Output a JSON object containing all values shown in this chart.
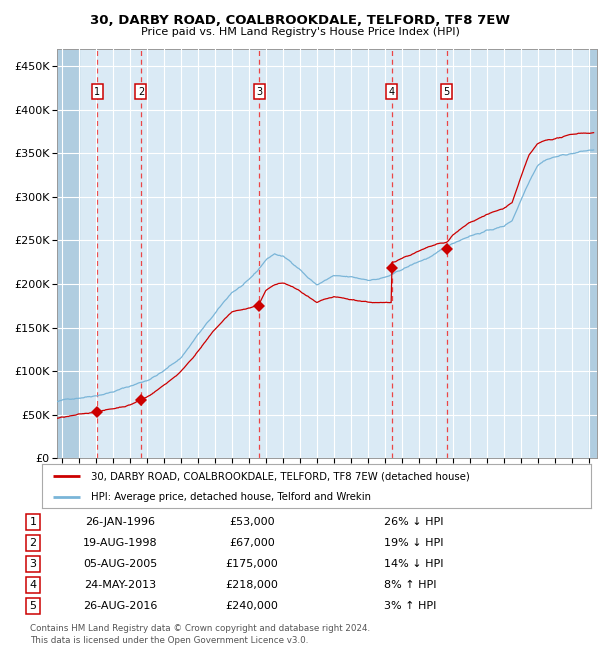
{
  "title": "30, DARBY ROAD, COALBROOKDALE, TELFORD, TF8 7EW",
  "subtitle": "Price paid vs. HM Land Registry's House Price Index (HPI)",
  "sales": [
    {
      "label": "1",
      "date_str": "26-JAN-1996",
      "year": 1996.07,
      "price": 53000,
      "pct": "26% ↓ HPI"
    },
    {
      "label": "2",
      "date_str": "19-AUG-1998",
      "year": 1998.64,
      "price": 67000,
      "pct": "19% ↓ HPI"
    },
    {
      "label": "3",
      "date_str": "05-AUG-2005",
      "year": 2005.6,
      "price": 175000,
      "pct": "14% ↓ HPI"
    },
    {
      "label": "4",
      "date_str": "24-MAY-2013",
      "year": 2013.4,
      "price": 218000,
      "pct": "8% ↑ HPI"
    },
    {
      "label": "5",
      "date_str": "26-AUG-2016",
      "year": 2016.65,
      "price": 240000,
      "pct": "3% ↑ HPI"
    }
  ],
  "hpi_color": "#7ab5d8",
  "price_color": "#cc0000",
  "marker_color": "#cc0000",
  "vline_color": "#ee3333",
  "plot_bg_color": "#daeaf5",
  "ylim": [
    0,
    470000
  ],
  "xlim_start": 1993.7,
  "xlim_end": 2025.5,
  "yticks": [
    0,
    50000,
    100000,
    150000,
    200000,
    250000,
    300000,
    350000,
    400000,
    450000
  ],
  "footer": "Contains HM Land Registry data © Crown copyright and database right 2024.\nThis data is licensed under the Open Government Licence v3.0.",
  "legend_line1": "30, DARBY ROAD, COALBROOKDALE, TELFORD, TF8 7EW (detached house)",
  "legend_line2": "HPI: Average price, detached house, Telford and Wrekin",
  "table_rows": [
    [
      "1",
      "26-JAN-1996",
      "£53,000",
      "26% ↓ HPI"
    ],
    [
      "2",
      "19-AUG-1998",
      "£67,000",
      "19% ↓ HPI"
    ],
    [
      "3",
      "05-AUG-2005",
      "£175,000",
      "14% ↓ HPI"
    ],
    [
      "4",
      "24-MAY-2013",
      "£218,000",
      "8% ↑ HPI"
    ],
    [
      "5",
      "26-AUG-2016",
      "£240,000",
      "3% ↑ HPI"
    ]
  ],
  "hpi_anchors": [
    [
      1993.7,
      65000
    ],
    [
      1994.5,
      68000
    ],
    [
      1995.0,
      70000
    ],
    [
      1996.0,
      74000
    ],
    [
      1997.0,
      79000
    ],
    [
      1998.0,
      85000
    ],
    [
      1999.0,
      92000
    ],
    [
      2000.0,
      103000
    ],
    [
      2001.0,
      118000
    ],
    [
      2002.0,
      145000
    ],
    [
      2003.0,
      168000
    ],
    [
      2004.0,
      192000
    ],
    [
      2005.0,
      205000
    ],
    [
      2005.5,
      215000
    ],
    [
      2006.0,
      228000
    ],
    [
      2006.5,
      235000
    ],
    [
      2007.0,
      232000
    ],
    [
      2007.5,
      225000
    ],
    [
      2008.0,
      218000
    ],
    [
      2008.5,
      208000
    ],
    [
      2009.0,
      200000
    ],
    [
      2009.5,
      205000
    ],
    [
      2010.0,
      210000
    ],
    [
      2010.5,
      208000
    ],
    [
      2011.0,
      207000
    ],
    [
      2011.5,
      205000
    ],
    [
      2012.0,
      204000
    ],
    [
      2012.5,
      205000
    ],
    [
      2013.0,
      207000
    ],
    [
      2013.5,
      210000
    ],
    [
      2014.0,
      215000
    ],
    [
      2015.0,
      224000
    ],
    [
      2016.0,
      232000
    ],
    [
      2017.0,
      244000
    ],
    [
      2018.0,
      254000
    ],
    [
      2019.0,
      260000
    ],
    [
      2020.0,
      265000
    ],
    [
      2020.5,
      272000
    ],
    [
      2021.0,
      295000
    ],
    [
      2021.5,
      318000
    ],
    [
      2022.0,
      338000
    ],
    [
      2022.5,
      345000
    ],
    [
      2023.0,
      348000
    ],
    [
      2023.5,
      350000
    ],
    [
      2024.0,
      352000
    ],
    [
      2024.5,
      354000
    ],
    [
      2025.3,
      356000
    ]
  ],
  "price_anchors": [
    [
      1993.7,
      46000
    ],
    [
      1994.5,
      48000
    ],
    [
      1995.5,
      50000
    ],
    [
      1996.07,
      53000
    ],
    [
      1997.0,
      56000
    ],
    [
      1998.0,
      61000
    ],
    [
      1998.64,
      67000
    ],
    [
      1999.0,
      70000
    ],
    [
      2000.0,
      84000
    ],
    [
      2001.0,
      100000
    ],
    [
      2002.0,
      124000
    ],
    [
      2003.0,
      148000
    ],
    [
      2004.0,
      168000
    ],
    [
      2005.0,
      172000
    ],
    [
      2005.6,
      175000
    ],
    [
      2006.0,
      192000
    ],
    [
      2006.5,
      198000
    ],
    [
      2007.0,
      200000
    ],
    [
      2007.5,
      196000
    ],
    [
      2008.0,
      190000
    ],
    [
      2008.5,
      183000
    ],
    [
      2009.0,
      175000
    ],
    [
      2009.5,
      178000
    ],
    [
      2010.0,
      180000
    ],
    [
      2010.5,
      178000
    ],
    [
      2011.0,
      176000
    ],
    [
      2011.5,
      175000
    ],
    [
      2012.0,
      174000
    ],
    [
      2012.5,
      173000
    ],
    [
      2013.0,
      172000
    ],
    [
      2013.39,
      172000
    ],
    [
      2013.41,
      218000
    ],
    [
      2014.0,
      224000
    ],
    [
      2015.0,
      232000
    ],
    [
      2016.0,
      238000
    ],
    [
      2016.65,
      240000
    ],
    [
      2017.0,
      248000
    ],
    [
      2018.0,
      262000
    ],
    [
      2019.0,
      272000
    ],
    [
      2020.0,
      278000
    ],
    [
      2020.5,
      285000
    ],
    [
      2021.0,
      312000
    ],
    [
      2021.5,
      338000
    ],
    [
      2022.0,
      350000
    ],
    [
      2022.5,
      354000
    ],
    [
      2023.0,
      356000
    ],
    [
      2023.5,
      358000
    ],
    [
      2024.0,
      360000
    ],
    [
      2024.5,
      362000
    ],
    [
      2025.3,
      363000
    ]
  ]
}
